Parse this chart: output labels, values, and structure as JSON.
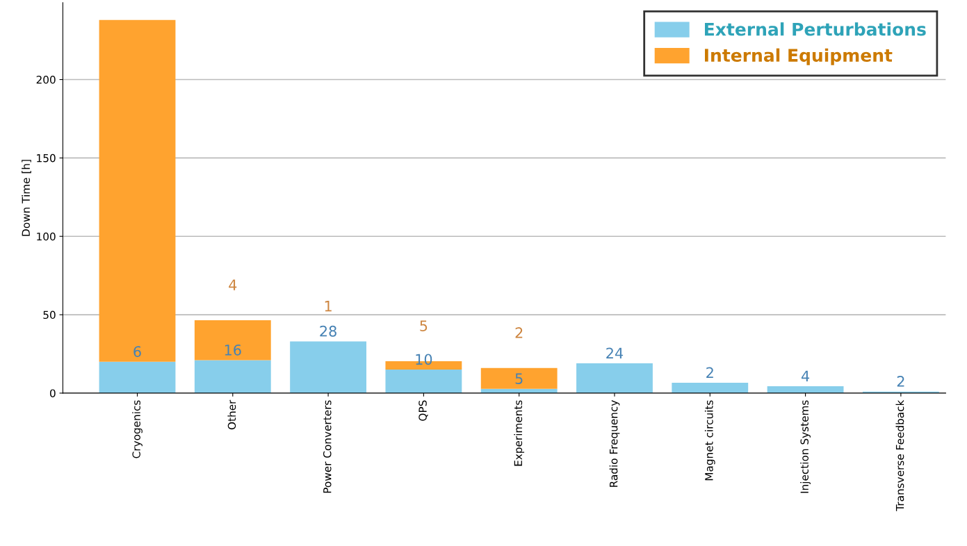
{
  "chart_data": {
    "type": "bar",
    "stacked": true,
    "ylabel": "Down Time [h]",
    "categories": [
      "Cryogenics",
      "Other",
      "Power Converters",
      "QPS",
      "Experiments",
      "Radio Frequency",
      "Magnet circuits",
      "Injection Systems",
      "Transverse Feedback"
    ],
    "series": [
      {
        "name": "External Perturbations",
        "color": "#87ceeb",
        "values": [
          20,
          21,
          33,
          15,
          2.7,
          19,
          6.6,
          4.4,
          1
        ]
      },
      {
        "name": "Internal Equipment",
        "color": "#ffa32f",
        "values": [
          218,
          25.5,
          0,
          5.4,
          13.3,
          0,
          0,
          0,
          0
        ]
      }
    ],
    "annotations": [
      {
        "text": "6",
        "x": "Cryogenics",
        "y": 20
      },
      {
        "text": "16",
        "x": "Other",
        "y": 21
      },
      {
        "text": "4",
        "x": "Other",
        "y": 46.5
      },
      {
        "text": "28",
        "x": "Power Converters",
        "y": 33
      },
      {
        "text": "1",
        "x": "Power Converters",
        "y": 33
      },
      {
        "text": "10",
        "x": "QPS",
        "y": 15
      },
      {
        "text": "5",
        "x": "QPS",
        "y": 20.4
      },
      {
        "text": "5",
        "x": "Experiments",
        "y": 2.7
      },
      {
        "text": "2",
        "x": "Experiments",
        "y": 16
      },
      {
        "text": "24",
        "x": "Radio Frequency",
        "y": 19
      },
      {
        "text": "2",
        "x": "Magnet circuits",
        "y": 6.6
      },
      {
        "text": "4",
        "x": "Injection Systems",
        "y": 4.4
      },
      {
        "text": "2",
        "x": "Transverse Feedback",
        "y": 1
      }
    ],
    "ylim": [
      0,
      249
    ],
    "yticks": [
      0,
      50,
      100,
      150,
      200
    ],
    "grid": "y",
    "legend": "top right"
  }
}
